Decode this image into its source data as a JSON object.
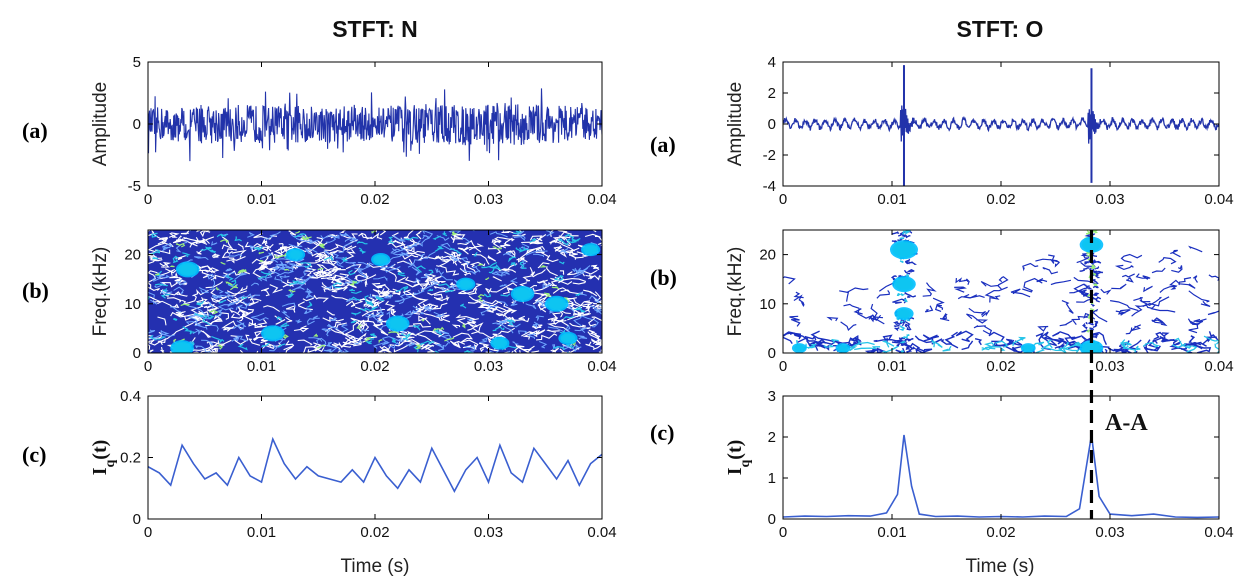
{
  "figure": {
    "colors": {
      "signal": "#2233aa",
      "iq_line": "#3a5fd0",
      "axis": "#000000",
      "dashed_marker": "#000000"
    },
    "contour_colormap": [
      "#000080",
      "#0000ff",
      "#00bfff",
      "#7fff7f",
      "#ffff00",
      "#ff8000",
      "#ff0000"
    ]
  },
  "chart_data": [
    {
      "id": "N-a",
      "panel_label": "(a)",
      "panel_title": "STFT: N",
      "type": "line",
      "ylabel": "Amplitude",
      "xlabel": "",
      "xlim": [
        0,
        0.04
      ],
      "ylim": [
        -5,
        5
      ],
      "xticks": [
        0,
        0.01,
        0.02,
        0.03,
        0.04
      ],
      "xtick_labels": [
        "0",
        "0.01",
        "0.02",
        "0.03",
        "0.04"
      ],
      "yticks": [
        -5,
        0,
        5
      ],
      "ytick_labels": [
        "-5",
        "0",
        "5"
      ],
      "series": [
        {
          "description": "broadband noise signal, amplitude mostly within ±2.5, peaks about ±3.5",
          "x": [
            0,
            0.004,
            0.008,
            0.012,
            0.016,
            0.02,
            0.024,
            0.028,
            0.032,
            0.036,
            0.04
          ],
          "y_max": [
            2.3,
            2.5,
            2.9,
            2.9,
            2.6,
            2.7,
            2.9,
            3.0,
            3.3,
            2.7,
            2.3
          ],
          "y_min": [
            -2.4,
            -3.2,
            -2.8,
            -2.6,
            -2.7,
            -2.4,
            -2.9,
            -3.3,
            -2.8,
            -2.9,
            -2.2
          ]
        }
      ]
    },
    {
      "id": "N-b",
      "panel_label": "(b)",
      "type": "heatmap",
      "ylabel": "Freq.(kHz)",
      "xlabel": "",
      "xlim": [
        0,
        0.04
      ],
      "ylim": [
        0,
        25
      ],
      "xticks": [
        0,
        0.01,
        0.02,
        0.03,
        0.04
      ],
      "xtick_labels": [
        "0",
        "0.01",
        "0.02",
        "0.03",
        "0.04"
      ],
      "yticks": [
        0,
        10,
        20
      ],
      "ytick_labels": [
        "0",
        "10",
        "20"
      ],
      "description": "dense uniform contour pattern over entire time-frequency plane; scattered yellow/orange peaks",
      "hotspots": [
        {
          "t": 0.003,
          "f": 1,
          "level": 0.9
        },
        {
          "t": 0.0035,
          "f": 17,
          "level": 0.75
        },
        {
          "t": 0.011,
          "f": 4,
          "level": 0.8
        },
        {
          "t": 0.013,
          "f": 20,
          "level": 0.7
        },
        {
          "t": 0.0205,
          "f": 19,
          "level": 0.7
        },
        {
          "t": 0.022,
          "f": 6,
          "level": 0.75
        },
        {
          "t": 0.028,
          "f": 14,
          "level": 0.7
        },
        {
          "t": 0.031,
          "f": 2,
          "level": 0.7
        },
        {
          "t": 0.033,
          "f": 12,
          "level": 0.8
        },
        {
          "t": 0.036,
          "f": 10,
          "level": 0.75
        },
        {
          "t": 0.039,
          "f": 21,
          "level": 0.7
        },
        {
          "t": 0.037,
          "f": 3,
          "level": 0.65
        }
      ]
    },
    {
      "id": "N-c",
      "panel_label": "(c)",
      "type": "line",
      "ylabel": "Iq(t)",
      "xlabel": "Time (s)",
      "xlim": [
        0,
        0.04
      ],
      "ylim": [
        0,
        0.4
      ],
      "xticks": [
        0,
        0.01,
        0.02,
        0.03,
        0.04
      ],
      "xtick_labels": [
        "0",
        "0.01",
        "0.02",
        "0.03",
        "0.04"
      ],
      "yticks": [
        0,
        0.2,
        0.4
      ],
      "ytick_labels": [
        "0",
        "0.2",
        "0.4"
      ],
      "series": [
        {
          "x": [
            0,
            0.001,
            0.002,
            0.003,
            0.004,
            0.005,
            0.006,
            0.007,
            0.008,
            0.009,
            0.01,
            0.011,
            0.012,
            0.013,
            0.014,
            0.015,
            0.016,
            0.017,
            0.018,
            0.019,
            0.02,
            0.021,
            0.022,
            0.023,
            0.024,
            0.025,
            0.026,
            0.027,
            0.028,
            0.029,
            0.03,
            0.031,
            0.032,
            0.033,
            0.034,
            0.035,
            0.036,
            0.037,
            0.038,
            0.039,
            0.04
          ],
          "y": [
            0.17,
            0.15,
            0.11,
            0.24,
            0.18,
            0.13,
            0.15,
            0.11,
            0.2,
            0.14,
            0.12,
            0.26,
            0.18,
            0.13,
            0.17,
            0.14,
            0.13,
            0.12,
            0.16,
            0.12,
            0.2,
            0.14,
            0.1,
            0.16,
            0.12,
            0.23,
            0.16,
            0.09,
            0.16,
            0.2,
            0.12,
            0.24,
            0.15,
            0.12,
            0.23,
            0.18,
            0.13,
            0.19,
            0.11,
            0.18,
            0.21
          ]
        }
      ]
    },
    {
      "id": "O-a",
      "panel_label": "(a)",
      "panel_title": "STFT: O",
      "type": "line",
      "ylabel": "Amplitude",
      "xlabel": "",
      "xlim": [
        0,
        0.04
      ],
      "ylim": [
        -4,
        4
      ],
      "xticks": [
        0,
        0.01,
        0.02,
        0.03,
        0.04
      ],
      "xtick_labels": [
        "0",
        "0.01",
        "0.02",
        "0.03",
        "0.04"
      ],
      "yticks": [
        -4,
        -2,
        0,
        2,
        4
      ],
      "ytick_labels": [
        "-4",
        "-2",
        "0",
        "2",
        "4"
      ],
      "series": [
        {
          "description": "low-level oscillation around 0 (about ±0.6) with two impulsive spikes",
          "spikes": [
            {
              "t": 0.0111,
              "max": 3.8,
              "min": -4.0
            },
            {
              "t": 0.0283,
              "max": 3.6,
              "min": -3.8
            }
          ]
        }
      ]
    },
    {
      "id": "O-b",
      "panel_label": "(b)",
      "type": "heatmap",
      "ylabel": "Freq.(kHz)",
      "xlabel": "",
      "xlim": [
        0,
        0.04
      ],
      "ylim": [
        0,
        25
      ],
      "xticks": [
        0,
        0.01,
        0.02,
        0.03,
        0.04
      ],
      "xtick_labels": [
        "0",
        "0.01",
        "0.02",
        "0.03",
        "0.04"
      ],
      "yticks": [
        0,
        10,
        20
      ],
      "ytick_labels": [
        "0",
        "10",
        "20"
      ],
      "description": "broadband vertical energy bands at the impact times (~0.0111 s and ~0.0283 s), low-frequency band near 0-2 kHz, sparse contours elsewhere",
      "bands": [
        {
          "t": 0.0111,
          "f_range": [
            0,
            25
          ],
          "peak_f": 21
        },
        {
          "t": 0.0283,
          "f_range": [
            0,
            25
          ],
          "peak_f": 1
        }
      ],
      "hotspots": [
        {
          "t": 0.0111,
          "f": 21,
          "level": 1.0
        },
        {
          "t": 0.0111,
          "f": 14,
          "level": 0.85
        },
        {
          "t": 0.0111,
          "f": 8,
          "level": 0.7
        },
        {
          "t": 0.0283,
          "f": 22,
          "level": 0.75
        },
        {
          "t": 0.0283,
          "f": 1,
          "level": 0.9
        },
        {
          "t": 0.0015,
          "f": 1,
          "level": 0.55
        },
        {
          "t": 0.0055,
          "f": 1,
          "level": 0.45
        },
        {
          "t": 0.0225,
          "f": 1,
          "level": 0.45
        }
      ],
      "dashed_marker_t": 0.0283
    },
    {
      "id": "O-c",
      "panel_label": "(c)",
      "type": "line",
      "ylabel": "Iq(t)",
      "xlabel": "Time (s)",
      "xlim": [
        0,
        0.04
      ],
      "ylim": [
        0,
        3
      ],
      "xticks": [
        0,
        0.01,
        0.02,
        0.03,
        0.04
      ],
      "xtick_labels": [
        "0",
        "0.01",
        "0.02",
        "0.03",
        "0.04"
      ],
      "yticks": [
        0,
        1,
        2,
        3
      ],
      "ytick_labels": [
        "0",
        "1",
        "2",
        "3"
      ],
      "annotation": "A-A",
      "series": [
        {
          "x": [
            0,
            0.002,
            0.004,
            0.006,
            0.008,
            0.0095,
            0.0105,
            0.0111,
            0.0118,
            0.0125,
            0.014,
            0.016,
            0.018,
            0.02,
            0.022,
            0.024,
            0.026,
            0.0272,
            0.0283,
            0.029,
            0.03,
            0.032,
            0.034,
            0.036,
            0.038,
            0.04
          ],
          "y": [
            0.05,
            0.07,
            0.06,
            0.08,
            0.07,
            0.15,
            0.6,
            2.05,
            0.8,
            0.12,
            0.06,
            0.07,
            0.05,
            0.06,
            0.05,
            0.07,
            0.06,
            0.25,
            2.05,
            0.55,
            0.12,
            0.08,
            0.12,
            0.05,
            0.04,
            0.05
          ]
        }
      ]
    }
  ]
}
